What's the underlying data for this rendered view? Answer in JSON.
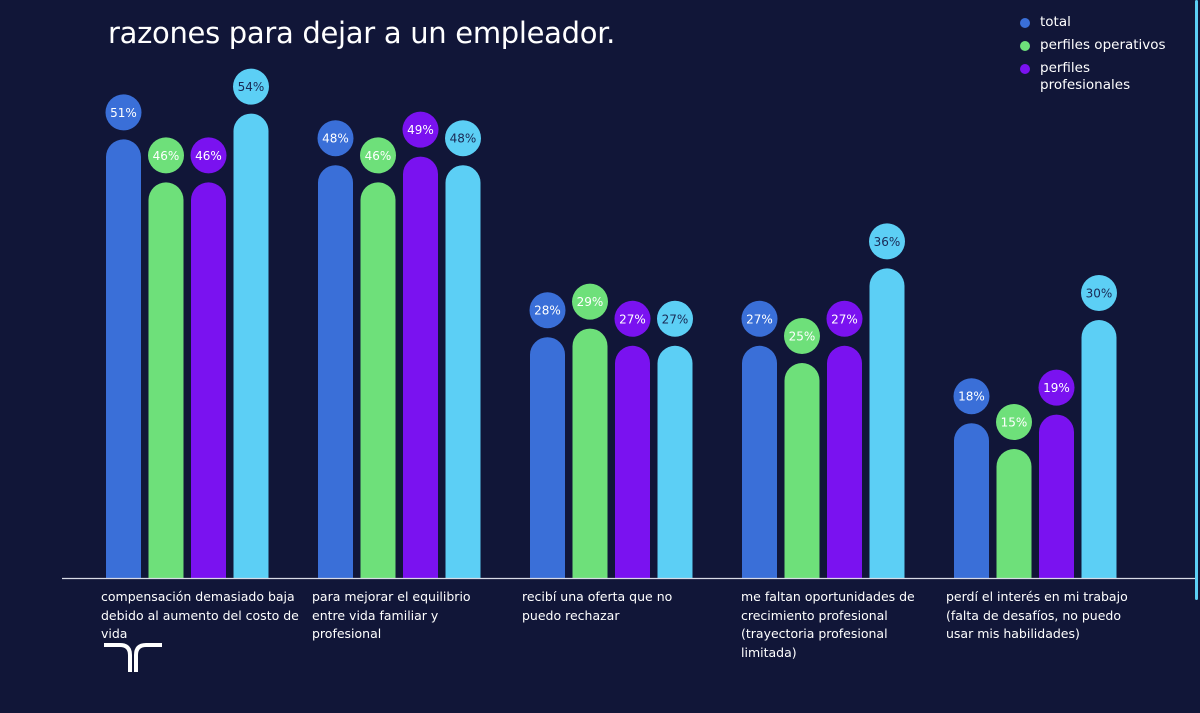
{
  "chart_data": {
    "type": "bar",
    "title": "razones para dejar a un empleador.",
    "categories": [
      "compensación demasiado baja debido al aumento del costo de vida",
      "para mejorar el equilibrio entre vida familiar y profesional",
      "recibí una oferta que no puedo rechazar",
      "me faltan oportunidades de crecimiento profesional (trayectoria profesional limitada)",
      "perdí el interés en mi trabajo (falta de desafíos, no puedo usar mis habilidades)"
    ],
    "series": [
      {
        "name": "total",
        "color": "#3a6fd8",
        "values": [
          51,
          48,
          28,
          27,
          18
        ]
      },
      {
        "name": "perfiles operativos",
        "color": "#6ee07a",
        "values": [
          46,
          46,
          29,
          25,
          15
        ]
      },
      {
        "name": "perfiles profesionales",
        "color": "#7a12f0",
        "values": [
          46,
          49,
          27,
          27,
          19
        ]
      },
      {
        "color": "#5ccff5",
        "values": [
          54,
          48,
          27,
          36,
          30
        ]
      }
    ],
    "value_suffix": "%",
    "legend_position": "top-right",
    "grid": false
  }
}
